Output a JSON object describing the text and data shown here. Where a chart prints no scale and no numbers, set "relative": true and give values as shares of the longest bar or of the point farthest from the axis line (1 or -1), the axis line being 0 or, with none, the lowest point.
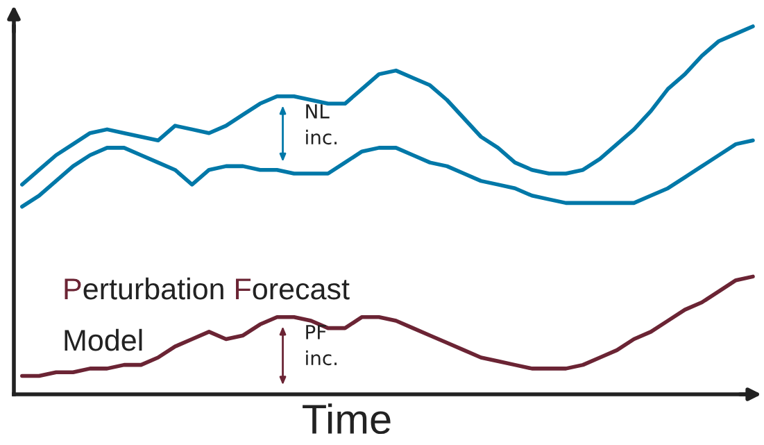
{
  "chart_data": {
    "type": "line",
    "relative": true,
    "xlabel": "Time",
    "categories": [
      null,
      null,
      null,
      null,
      null,
      null,
      null,
      null,
      null,
      null,
      null,
      null,
      null,
      null,
      null,
      null,
      null,
      null,
      null,
      null,
      null,
      null,
      null,
      null,
      null,
      null,
      null,
      null,
      null,
      null,
      null,
      null,
      null,
      null,
      null,
      null,
      null,
      null,
      null,
      null,
      null,
      null,
      null,
      null
    ],
    "series": [
      {
        "color": "#0078a8",
        "values": [
          0.57,
          0.61,
          0.65,
          0.68,
          0.71,
          0.72,
          0.71,
          0.7,
          0.69,
          0.73,
          0.72,
          0.71,
          0.73,
          0.76,
          0.79,
          0.81,
          0.81,
          0.8,
          0.79,
          0.79,
          0.83,
          0.87,
          0.88,
          0.86,
          0.84,
          0.8,
          0.75,
          0.7,
          0.67,
          0.63,
          0.61,
          0.6,
          0.6,
          0.61,
          0.64,
          0.68,
          0.72,
          0.77,
          0.83,
          0.87,
          0.92,
          0.96,
          0.98,
          1.0
        ]
      },
      {
        "color": "#0078a8",
        "values": [
          0.51,
          0.54,
          0.58,
          0.62,
          0.65,
          0.67,
          0.67,
          0.65,
          0.63,
          0.61,
          0.57,
          0.61,
          0.62,
          0.62,
          0.61,
          0.61,
          0.6,
          0.6,
          0.6,
          0.63,
          0.66,
          0.67,
          0.67,
          0.65,
          0.63,
          0.62,
          0.6,
          0.58,
          0.57,
          0.56,
          0.54,
          0.53,
          0.52,
          0.52,
          0.52,
          0.52,
          0.52,
          0.54,
          0.56,
          0.59,
          0.62,
          0.65,
          0.68,
          0.69
        ]
      },
      {
        "name": "Perturbation Forecast Model",
        "color": "#6b2434",
        "values": [
          0.05,
          0.05,
          0.06,
          0.06,
          0.07,
          0.07,
          0.08,
          0.08,
          0.1,
          0.13,
          0.15,
          0.17,
          0.15,
          0.16,
          0.19,
          0.21,
          0.21,
          0.2,
          0.18,
          0.18,
          0.21,
          0.21,
          0.2,
          0.18,
          0.16,
          0.14,
          0.12,
          0.1,
          0.09,
          0.08,
          0.07,
          0.07,
          0.07,
          0.08,
          0.1,
          0.12,
          0.15,
          0.17,
          0.2,
          0.23,
          0.25,
          0.28,
          0.31,
          0.32
        ]
      }
    ],
    "annotations": [
      "NL inc.",
      "PF inc."
    ]
  }
}
